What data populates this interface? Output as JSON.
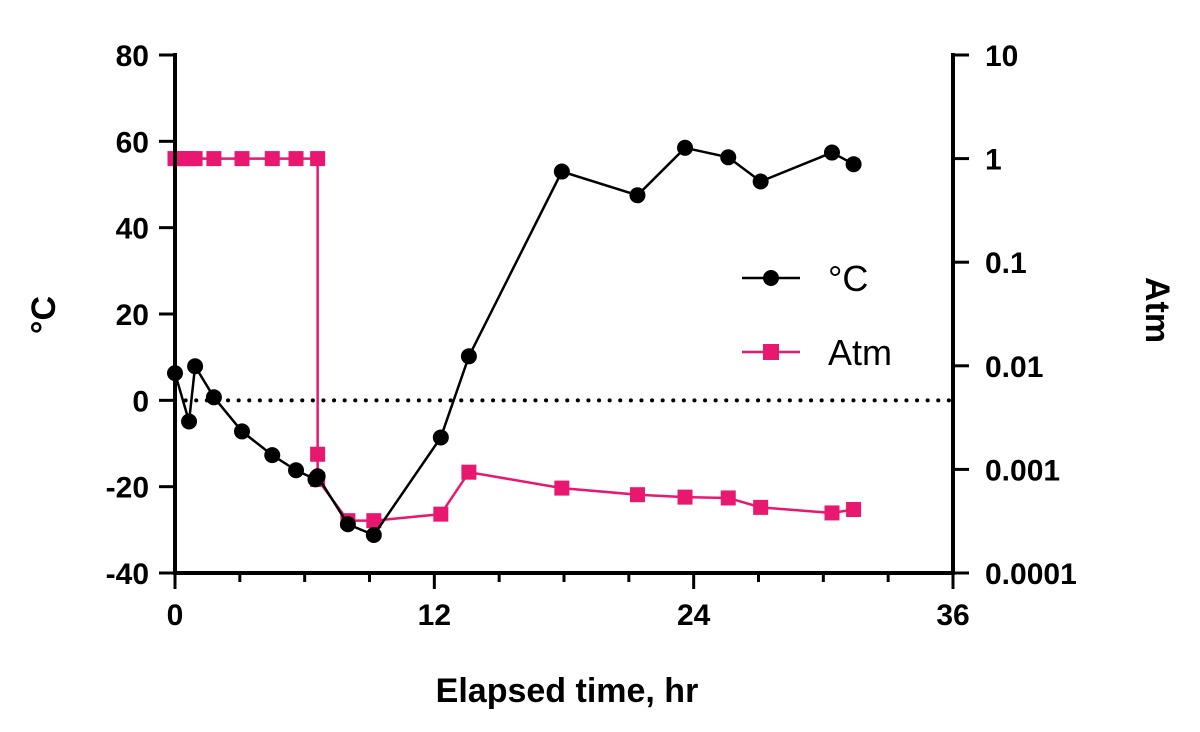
{
  "chart_data": {
    "type": "line",
    "xlabel": "Elapsed time, hr",
    "ylabel_left": "°C",
    "ylabel_right": "Atm",
    "xlim": [
      0,
      36
    ],
    "xticks": [
      "0",
      "12",
      "24",
      "36"
    ],
    "ylim_left": [
      -40,
      80
    ],
    "yticks_left": [
      "-40",
      "-20",
      "0",
      "20",
      "40",
      "60",
      "80"
    ],
    "ylim_right": [
      0.0001,
      10
    ],
    "yscale_right": "log",
    "yticks_right": [
      "0.0001",
      "0.001",
      "0.01",
      "0.1",
      "1",
      "10"
    ],
    "reference_line": {
      "y_left": 0,
      "style": "dotted"
    },
    "legend_position": "center-right",
    "series": [
      {
        "name": "°C",
        "axis": "left",
        "marker": "circle",
        "color": "#000000",
        "x": [
          0,
          0.65,
          0.93,
          1.8,
          3.1,
          4.5,
          5.6,
          6.5,
          6.6,
          8.0,
          9.2,
          12.3,
          13.6,
          17.9,
          21.4,
          23.6,
          25.6,
          27.1,
          30.4,
          31.4
        ],
        "y": [
          6.3,
          -4.9,
          7.9,
          0.7,
          -7.2,
          -12.7,
          -16.2,
          -18.3,
          -17.6,
          -28.7,
          -31.2,
          -8.6,
          10.2,
          53.0,
          47.5,
          58.5,
          56.3,
          50.7,
          57.4,
          54.7
        ]
      },
      {
        "name": "Atm",
        "axis": "right",
        "marker": "square",
        "color": "#e8176f",
        "x": [
          0,
          0.3,
          0.65,
          0.93,
          1.8,
          3.1,
          4.5,
          5.6,
          6.6,
          6.6,
          6.6,
          8.0,
          9.2,
          12.3,
          13.6,
          17.9,
          21.4,
          23.6,
          25.6,
          27.1,
          30.4,
          31.4
        ],
        "y": [
          1,
          1,
          1,
          1,
          1,
          1,
          1,
          1,
          1,
          0.0014,
          0.0008,
          0.00032,
          0.00032,
          0.00037,
          0.00094,
          0.00066,
          0.00057,
          0.00054,
          0.00053,
          0.00043,
          0.00038,
          0.00041
        ]
      }
    ]
  }
}
